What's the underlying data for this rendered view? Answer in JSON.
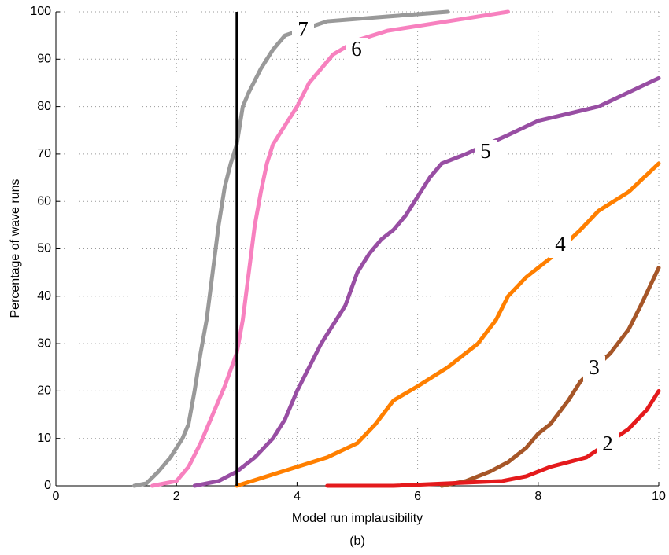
{
  "chart_data": {
    "type": "line",
    "title": "(b)",
    "x_label": "Model run implausibility",
    "y_label": "Percentage of wave runs",
    "xlim": [
      0,
      10
    ],
    "ylim": [
      0,
      100
    ],
    "xticks": [
      0,
      2,
      4,
      6,
      8,
      10
    ],
    "yticks": [
      0,
      10,
      20,
      30,
      40,
      50,
      60,
      70,
      80,
      90,
      100
    ],
    "grid": true,
    "vline": 3,
    "series": [
      {
        "name": "7",
        "color": "#999999",
        "x": [
          1.3,
          1.5,
          1.7,
          1.9,
          2.1,
          2.2,
          2.3,
          2.4,
          2.5,
          2.6,
          2.7,
          2.8,
          2.9,
          3.0,
          3.1,
          3.2,
          3.4,
          3.6,
          3.8,
          4.5,
          5.5,
          6.5
        ],
        "values": [
          0,
          0.5,
          3,
          6,
          10,
          13,
          20,
          28,
          35,
          45,
          55,
          63,
          68,
          72,
          80,
          83,
          88,
          92,
          95,
          98,
          99,
          100
        ]
      },
      {
        "name": "6",
        "color": "#f781bf",
        "x": [
          1.6,
          2.0,
          2.2,
          2.4,
          2.6,
          2.8,
          3.0,
          3.1,
          3.2,
          3.3,
          3.4,
          3.5,
          3.6,
          3.8,
          4.0,
          4.2,
          4.4,
          4.6,
          5.0,
          5.5,
          6.5,
          7.5
        ],
        "values": [
          0,
          1,
          4,
          9,
          15,
          21,
          28,
          35,
          45,
          55,
          62,
          68,
          72,
          76,
          80,
          85,
          88,
          91,
          94,
          96,
          98,
          100
        ]
      },
      {
        "name": "5",
        "color": "#984ea3",
        "x": [
          2.3,
          2.7,
          3.0,
          3.3,
          3.6,
          3.8,
          4.0,
          4.2,
          4.4,
          4.6,
          4.8,
          5.0,
          5.2,
          5.4,
          5.6,
          5.8,
          6.0,
          6.2,
          6.4,
          6.8,
          7.5,
          8.0,
          8.5,
          9.0,
          9.5,
          10.0
        ],
        "values": [
          0,
          1,
          3,
          6,
          10,
          14,
          20,
          25,
          30,
          34,
          38,
          45,
          49,
          52,
          54,
          57,
          61,
          65,
          68,
          70,
          74,
          77,
          78.5,
          80,
          83,
          86
        ]
      },
      {
        "name": "4",
        "color": "#ff7f00",
        "x": [
          3.0,
          3.5,
          4.0,
          4.5,
          5.0,
          5.3,
          5.6,
          6.0,
          6.5,
          7.0,
          7.3,
          7.5,
          7.8,
          8.2,
          8.7,
          9.0,
          9.5,
          10.0
        ],
        "values": [
          0,
          2,
          4,
          6,
          9,
          13,
          18,
          21,
          25,
          30,
          35,
          40,
          44,
          48,
          54,
          58,
          62,
          68
        ]
      },
      {
        "name": "3",
        "color": "#a65628",
        "x": [
          6.4,
          6.8,
          7.2,
          7.5,
          7.8,
          8.0,
          8.2,
          8.5,
          8.7,
          9.2,
          9.5,
          9.7,
          10.0
        ],
        "values": [
          0,
          1,
          3,
          5,
          8,
          11,
          13,
          18,
          22,
          28,
          33,
          38,
          46
        ]
      },
      {
        "name": "2",
        "color": "#e41a1c",
        "x": [
          4.5,
          5.6,
          7.4,
          7.8,
          8.2,
          8.8,
          9.5,
          9.8,
          10.0
        ],
        "values": [
          0,
          0,
          1,
          2,
          4,
          6,
          12,
          16,
          20
        ]
      }
    ]
  }
}
